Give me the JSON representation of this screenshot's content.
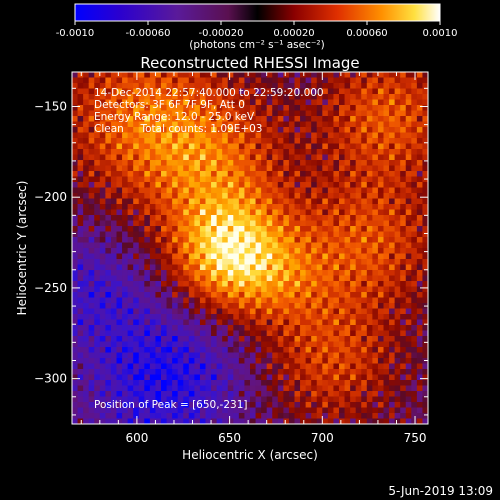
{
  "chart_data": {
    "type": "heatmap",
    "title": "Reconstructed RHESSI Image",
    "xlabel": "Heliocentric X (arcsec)",
    "ylabel": "Heliocentric Y (arcsec)",
    "xlim": [
      565,
      757
    ],
    "ylim": [
      -325,
      -131
    ],
    "x_ticks": [
      600,
      650,
      700,
      750
    ],
    "y_ticks": [
      -150,
      -200,
      -250,
      -300
    ],
    "colorbar": {
      "range": [
        -0.001,
        0.001
      ],
      "ticks": [
        "-0.0010",
        "-0.00060",
        "-0.00020",
        "0.00020",
        "0.00060",
        "0.0010"
      ],
      "units_label": "(photons cm⁻² s⁻¹ asec⁻²)"
    },
    "colormap_colors": [
      "#0000ff",
      "#4400aa",
      "#6a1a8a",
      "#8a2a00",
      "#c83000",
      "#ff6a00",
      "#ffc000",
      "#ffffff"
    ],
    "peak": {
      "x": 650,
      "y": -231
    },
    "annotations": [
      "14-Dec-2014 22:57:40.000 to 22:59:20.000",
      "Detectors: 3F 6F 7F 9F, Att 0",
      "Energy Range: 12.0 - 25.0 keV",
      "Clean     Total counts: 1.09E+03"
    ],
    "peak_label": "Position of Peak = [650,-231]",
    "footer_date": "5-Jun-2019 13:09"
  }
}
